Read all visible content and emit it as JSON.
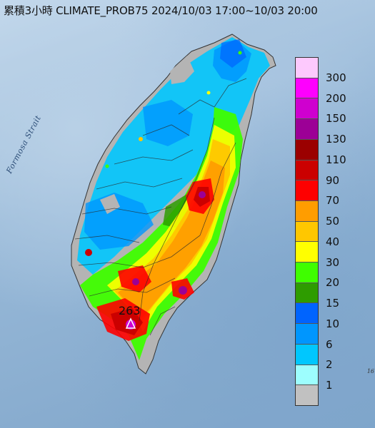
{
  "title": "累積3小時 CLIMATE_PROB75 2024/10/03 17:00~10/03 20:00",
  "strait_label": "Formosa Strait",
  "max_value_label": "263",
  "edge_note": "16",
  "legend": {
    "labels": [
      "300",
      "200",
      "150",
      "130",
      "110",
      "90",
      "70",
      "50",
      "40",
      "30",
      "20",
      "15",
      "10",
      "6",
      "2",
      "1"
    ],
    "colors": [
      "#fdc9fd",
      "#fe00fe",
      "#cf00cf",
      "#9c0096",
      "#9b0000",
      "#cb0000",
      "#fe0000",
      "#ff9d00",
      "#ffc700",
      "#ffff00",
      "#3ffe00",
      "#2e9c00",
      "#0064fe",
      "#0096fe",
      "#00c7fe",
      "#9dfefe",
      "#c1c1c1"
    ]
  },
  "colors": {
    "sea": "#98b9d8",
    "no_data_land": "#b4b4b4"
  }
}
